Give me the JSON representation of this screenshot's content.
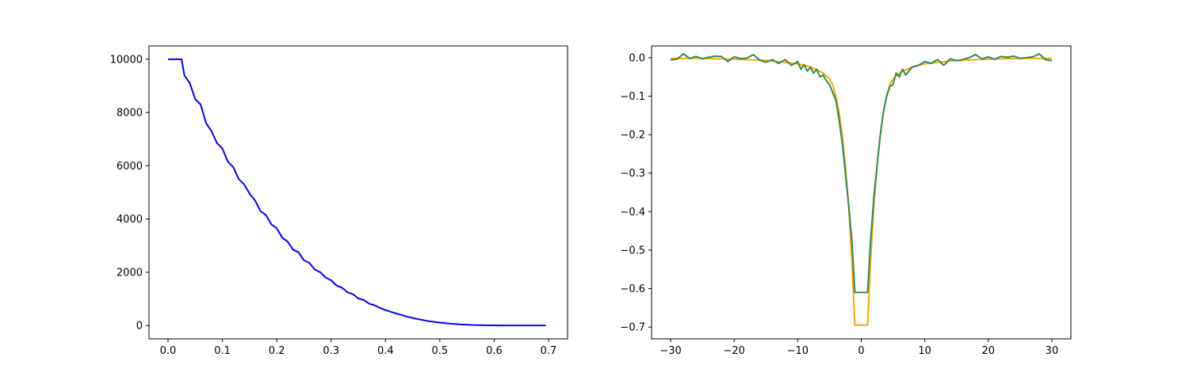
{
  "chart_data": [
    {
      "type": "line",
      "title": "",
      "xlabel": "",
      "ylabel": "",
      "xlim": [
        -0.035,
        0.735
      ],
      "ylim": [
        -500,
        10500
      ],
      "xticks": [
        0.0,
        0.1,
        0.2,
        0.3,
        0.4,
        0.5,
        0.6,
        0.7
      ],
      "xtick_labels": [
        "0.0",
        "0.1",
        "0.2",
        "0.3",
        "0.4",
        "0.5",
        "0.6",
        "0.7"
      ],
      "yticks": [
        0,
        2000,
        4000,
        6000,
        8000,
        10000
      ],
      "ytick_labels": [
        "0",
        "2000",
        "4000",
        "6000",
        "8000",
        "10000"
      ],
      "grid": false,
      "series": [
        {
          "color": "#0000ff",
          "x": [
            0.0,
            0.01,
            0.02,
            0.025,
            0.03,
            0.04,
            0.05,
            0.06,
            0.07,
            0.08,
            0.09,
            0.1,
            0.11,
            0.12,
            0.13,
            0.14,
            0.15,
            0.16,
            0.17,
            0.18,
            0.19,
            0.2,
            0.21,
            0.22,
            0.23,
            0.24,
            0.25,
            0.26,
            0.27,
            0.28,
            0.29,
            0.3,
            0.31,
            0.32,
            0.33,
            0.34,
            0.35,
            0.36,
            0.37,
            0.38,
            0.39,
            0.4,
            0.42,
            0.44,
            0.46,
            0.48,
            0.5,
            0.52,
            0.54,
            0.56,
            0.58,
            0.6,
            0.62,
            0.64,
            0.66,
            0.68,
            0.695
          ],
          "y": [
            10000,
            10000,
            10000,
            10000,
            9400,
            9100,
            8500,
            8300,
            7600,
            7300,
            6850,
            6650,
            6150,
            5950,
            5500,
            5300,
            4950,
            4700,
            4300,
            4150,
            3800,
            3650,
            3300,
            3150,
            2850,
            2750,
            2450,
            2350,
            2100,
            2000,
            1800,
            1700,
            1500,
            1420,
            1250,
            1180,
            1020,
            960,
            820,
            760,
            660,
            580,
            450,
            330,
            240,
            160,
            110,
            70,
            40,
            20,
            10,
            5,
            2,
            1,
            0,
            0,
            0
          ]
        }
      ]
    },
    {
      "type": "line",
      "title": "",
      "xlabel": "",
      "ylabel": "",
      "xlim": [
        -33,
        33
      ],
      "ylim": [
        -0.7305,
        0.0305
      ],
      "xticks": [
        -30,
        -20,
        -10,
        0,
        10,
        20,
        30
      ],
      "xtick_labels": [
        "−30",
        "−20",
        "−10",
        "0",
        "10",
        "20",
        "30"
      ],
      "yticks": [
        0.0,
        -0.1,
        -0.2,
        -0.3,
        -0.4,
        -0.5,
        -0.6,
        -0.7
      ],
      "ytick_labels": [
        "0.0",
        "−0.1",
        "−0.2",
        "−0.3",
        "−0.4",
        "−0.5",
        "−0.6",
        "−0.7"
      ],
      "grid": false,
      "series": [
        {
          "color": "#ffa500",
          "x": [
            -30,
            -25,
            -20,
            -15,
            -10,
            -8,
            -6,
            -5,
            -4.5,
            -4,
            -3.5,
            -3,
            -2.5,
            -2,
            -1.5,
            -1,
            1,
            1.5,
            2,
            2.5,
            3,
            3.5,
            4,
            4.5,
            5,
            6,
            8,
            10,
            15,
            20,
            25,
            30
          ],
          "y": [
            -0.002,
            -0.002,
            -0.004,
            -0.007,
            -0.016,
            -0.024,
            -0.04,
            -0.055,
            -0.07,
            -0.1,
            -0.14,
            -0.2,
            -0.28,
            -0.38,
            -0.52,
            -0.695,
            -0.695,
            -0.52,
            -0.38,
            -0.28,
            -0.2,
            -0.14,
            -0.1,
            -0.07,
            -0.055,
            -0.04,
            -0.024,
            -0.016,
            -0.007,
            -0.004,
            -0.002,
            -0.002
          ]
        },
        {
          "color": "#2e8b57",
          "x": [
            -30,
            -29,
            -28,
            -27,
            -26,
            -25,
            -24,
            -23,
            -22,
            -21,
            -20,
            -19,
            -18,
            -17,
            -16,
            -15,
            -14,
            -13,
            -12,
            -11,
            -10,
            -9.5,
            -9,
            -8.5,
            -8,
            -7.5,
            -7,
            -6.5,
            -6,
            -5.5,
            -5,
            -4.5,
            -4,
            -3.5,
            -3,
            -2.5,
            -2,
            -1.5,
            -1,
            1,
            1.5,
            2,
            2.5,
            3,
            3.5,
            4,
            4.5,
            5,
            5.5,
            6,
            6.5,
            7,
            8,
            9,
            10,
            11,
            12,
            13,
            14,
            15,
            16,
            17,
            18,
            19,
            20,
            21,
            22,
            23,
            24,
            25,
            26,
            27,
            28,
            29,
            30
          ],
          "y": [
            -0.006,
            -0.004,
            0.01,
            -0.002,
            0.003,
            -0.003,
            0.001,
            0.004,
            0.003,
            -0.01,
            0.002,
            -0.003,
            -0.001,
            0.008,
            -0.006,
            -0.012,
            -0.005,
            -0.015,
            -0.005,
            -0.02,
            -0.01,
            -0.03,
            -0.018,
            -0.035,
            -0.025,
            -0.04,
            -0.03,
            -0.05,
            -0.045,
            -0.06,
            -0.07,
            -0.09,
            -0.11,
            -0.16,
            -0.22,
            -0.3,
            -0.38,
            -0.47,
            -0.61,
            -0.61,
            -0.47,
            -0.36,
            -0.28,
            -0.2,
            -0.14,
            -0.1,
            -0.075,
            -0.07,
            -0.04,
            -0.05,
            -0.03,
            -0.045,
            -0.025,
            -0.02,
            -0.01,
            -0.015,
            -0.005,
            -0.02,
            -0.003,
            -0.008,
            -0.005,
            0.0,
            0.008,
            -0.003,
            0.002,
            -0.004,
            0.003,
            0.001,
            0.004,
            -0.002,
            0.0,
            0.002,
            0.01,
            -0.005,
            -0.008
          ]
        }
      ]
    }
  ]
}
